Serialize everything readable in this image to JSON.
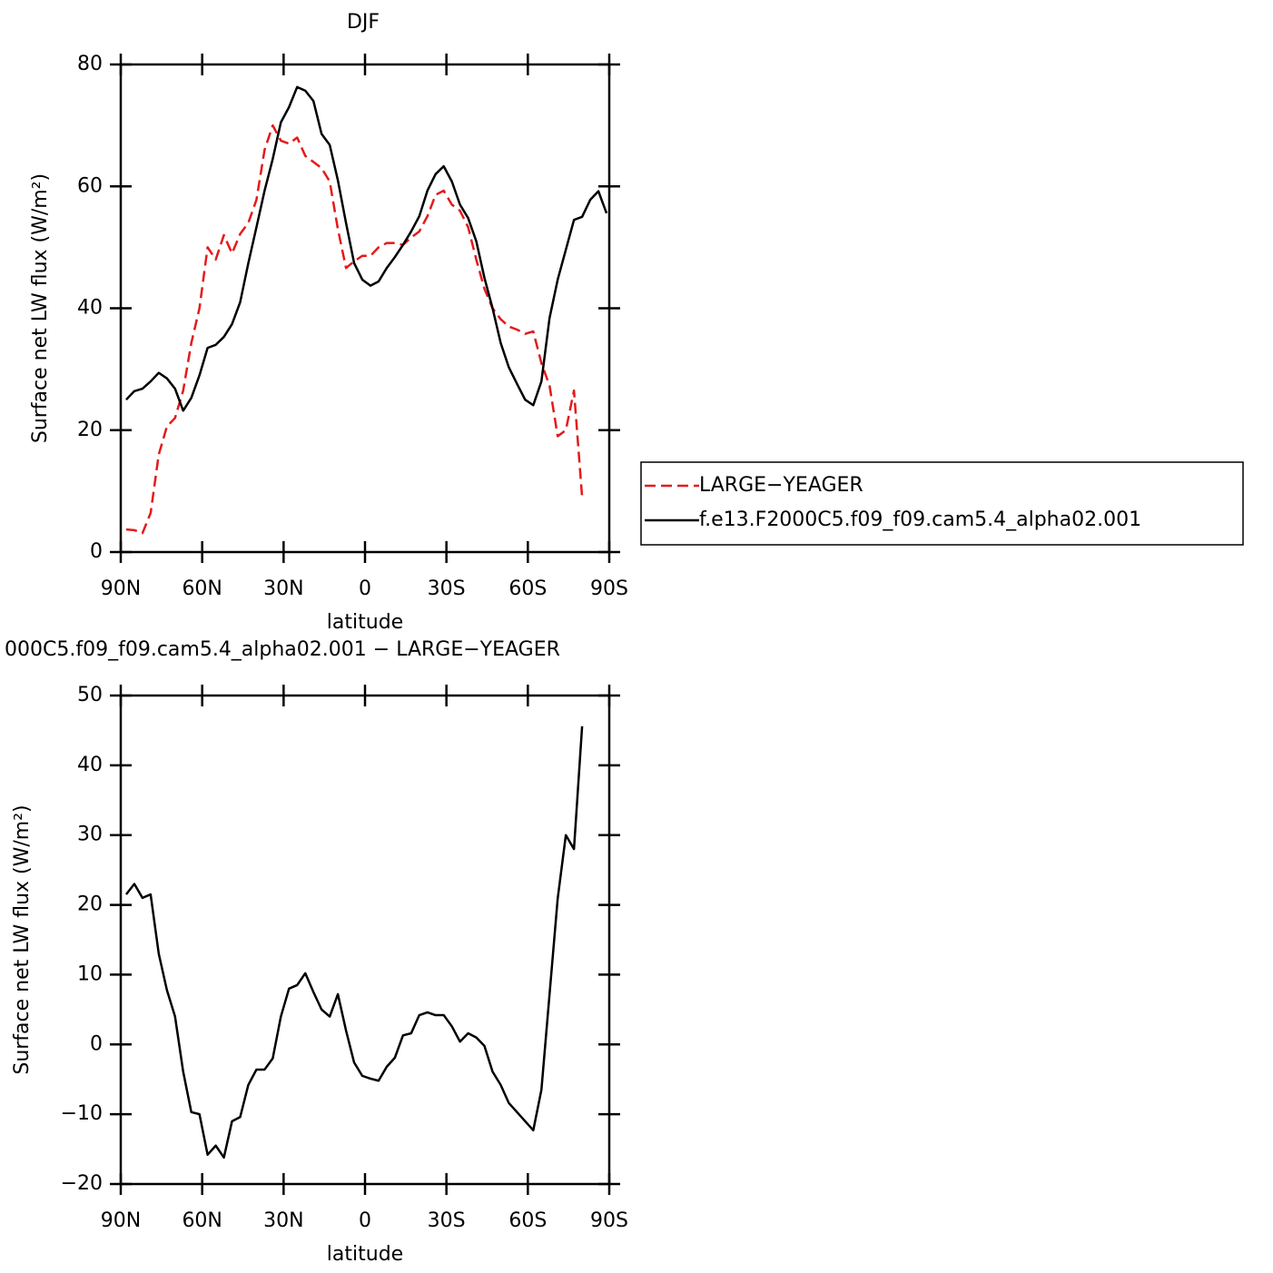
{
  "chart_data": [
    {
      "type": "line",
      "title": "DJF",
      "xlabel": "latitude",
      "ylabel": "Surface net LW flux (W/m²)",
      "x": [
        88,
        85,
        82,
        79,
        76,
        73,
        70,
        67,
        64,
        61,
        58,
        55,
        52,
        49,
        46,
        43,
        40,
        37,
        34,
        31,
        28,
        25,
        22,
        19,
        16,
        13,
        10,
        7,
        4,
        1,
        -2,
        -5,
        -8,
        -11,
        -14,
        -17,
        -20,
        -23,
        -26,
        -29,
        -32,
        -35,
        -38,
        -41,
        -44,
        -47,
        -50,
        -53,
        -56,
        -59,
        -62,
        -65,
        -68,
        -71,
        -74,
        -77,
        -80,
        -83,
        -86,
        -89
      ],
      "series": [
        {
          "name": "LARGE−YEAGER",
          "color": "#e41a1c",
          "dash": true,
          "values": [
            3.7,
            3.6,
            3.1,
            6.4,
            16,
            20.6,
            22,
            26.5,
            34.3,
            40,
            50,
            48,
            52,
            49,
            52.2,
            54,
            57.8,
            66,
            70,
            67.5,
            67,
            68,
            65,
            64,
            63,
            60.8,
            53,
            46.6,
            47.7,
            48.6,
            48.6,
            50,
            50.7,
            50.7,
            50.4,
            51.6,
            52.6,
            55.1,
            58.6,
            59.3,
            57,
            56,
            53.3,
            48,
            43.2,
            40,
            38.2,
            37,
            36.5,
            35.8,
            36.2,
            31,
            27.3,
            19,
            20,
            26.5,
            9,
            null,
            null,
            null
          ]
        },
        {
          "name": "f.e13.F2000C5.f09_f09.cam5.4_alpha02.001",
          "color": "#000000",
          "dash": false,
          "values": [
            25,
            26.4,
            26.8,
            28,
            29.4,
            28.5,
            26.8,
            23.2,
            25.3,
            29,
            33.5,
            34,
            35.3,
            37.4,
            41,
            47.4,
            53.3,
            59.3,
            64.5,
            70.5,
            73,
            76.3,
            75.7,
            74,
            68.6,
            66.8,
            61,
            54,
            47.4,
            44.7,
            43.7,
            44.4,
            46.6,
            48.4,
            50.4,
            52.6,
            55.1,
            59.3,
            62,
            63.3,
            60.8,
            57,
            54.8,
            51,
            45,
            40,
            34.3,
            30.3,
            27.6,
            25,
            24.1,
            28,
            38.4,
            44.7,
            49.6,
            54.5,
            55,
            57.8,
            59.2,
            55.6
          ]
        }
      ],
      "xlim": [
        90,
        -90
      ],
      "xticks": [
        {
          "value": 90,
          "label": "90N"
        },
        {
          "value": 60,
          "label": "60N"
        },
        {
          "value": 30,
          "label": "30N"
        },
        0,
        {
          "value": -30,
          "label": "30S"
        },
        {
          "value": -60,
          "label": "60S"
        },
        {
          "value": -90,
          "label": "90S"
        }
      ],
      "ylim": [
        0,
        80
      ],
      "yticks": [
        0,
        20,
        40,
        60,
        80
      ],
      "legend": "right"
    },
    {
      "type": "line",
      "title": "000C5.f09_f09.cam5.4_alpha02.001 − LARGE−YEAGER",
      "xlabel": "latitude",
      "ylabel": "Surface net LW flux (W/m²)",
      "x": [
        88,
        85,
        82,
        79,
        76,
        73,
        70,
        67,
        64,
        61,
        58,
        55,
        52,
        49,
        46,
        43,
        40,
        37,
        34,
        31,
        28,
        25,
        22,
        19,
        16,
        13,
        10,
        7,
        4,
        1,
        -2,
        -5,
        -8,
        -11,
        -14,
        -17,
        -20,
        -23,
        -26,
        -29,
        -32,
        -35,
        -38,
        -41,
        -44,
        -47,
        -50,
        -53,
        -56,
        -59,
        -62,
        -65,
        -68,
        -71,
        -74,
        -77,
        -80,
        -83,
        -86,
        -89
      ],
      "series": [
        {
          "color": "#000000",
          "dash": false,
          "values": [
            21.5,
            23,
            21,
            21.5,
            13,
            7.8,
            4,
            -3.9,
            -9.7,
            -10,
            -15.8,
            -14.5,
            -16.2,
            -11,
            -10.4,
            -5.8,
            -3.6,
            -3.6,
            -2,
            4,
            8,
            8.5,
            10.2,
            7.5,
            5,
            4,
            7.2,
            2,
            -2.6,
            -4.5,
            -4.9,
            -5.2,
            -3.2,
            -1.9,
            1.3,
            1.6,
            4.2,
            4.6,
            4.2,
            4.2,
            2.6,
            0.4,
            1.6,
            1,
            -0.2,
            -3.9,
            -5.8,
            -8.4,
            -9.7,
            -11,
            -12.3,
            -6.5,
            7.2,
            20.9,
            30,
            28,
            45.6,
            null,
            null,
            null
          ]
        }
      ],
      "xlim": [
        90,
        -90
      ],
      "xticks": [
        {
          "value": 90,
          "label": "90N"
        },
        {
          "value": 60,
          "label": "60N"
        },
        {
          "value": 30,
          "label": "30N"
        },
        0,
        {
          "value": -30,
          "label": "30S"
        },
        {
          "value": -60,
          "label": "60S"
        },
        {
          "value": -90,
          "label": "90S"
        }
      ],
      "ylim": [
        -20,
        50
      ],
      "yticks": [
        {
          "value": -20,
          "label": "−20"
        },
        {
          "value": -10,
          "label": "−10"
        },
        0,
        10,
        20,
        30,
        40,
        50
      ]
    }
  ]
}
